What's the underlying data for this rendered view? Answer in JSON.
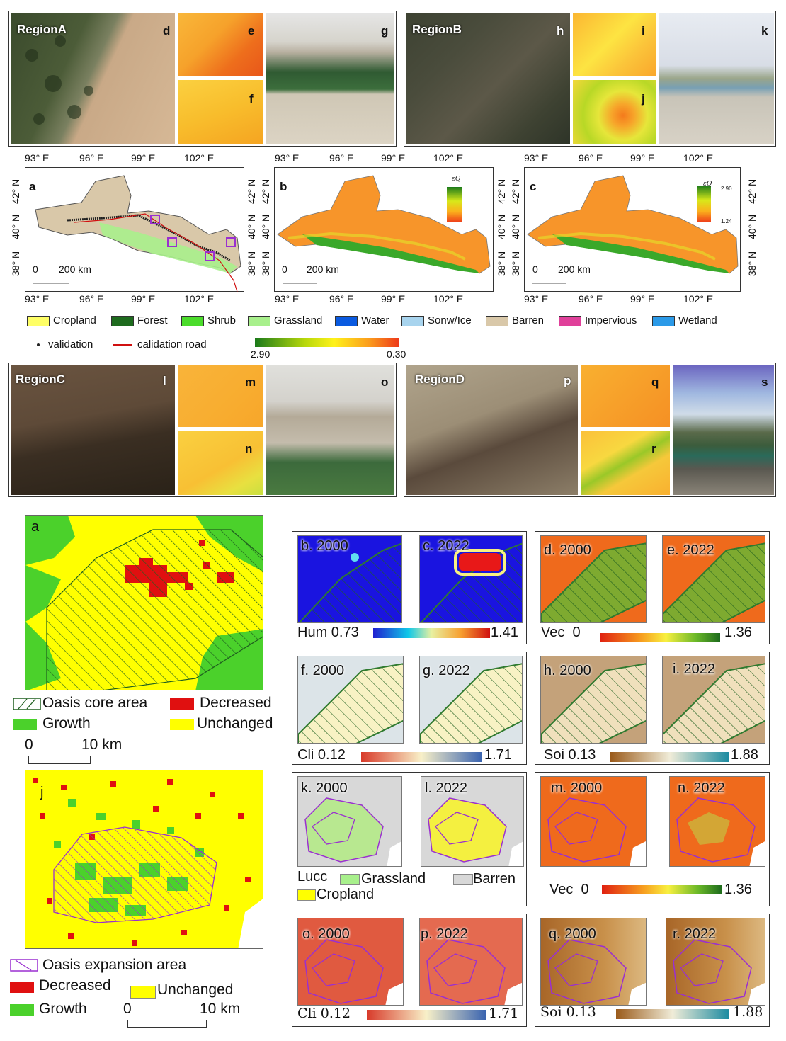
{
  "top": {
    "regions": {
      "a": {
        "title": "RegionA",
        "labels": [
          "d",
          "e",
          "f",
          "g"
        ]
      },
      "b": {
        "title": "RegionB",
        "labels": [
          "h",
          "i",
          "j",
          "k"
        ]
      },
      "c": {
        "title": "RegionC",
        "labels": [
          "l",
          "m",
          "n",
          "o"
        ]
      },
      "d": {
        "title": "RegionD",
        "labels": [
          "p",
          "q",
          "r",
          "s"
        ]
      }
    },
    "maps": {
      "labels": [
        "a",
        "b",
        "c"
      ],
      "lon_ticks": [
        "93° E",
        "96° E",
        "99° E",
        "102° E"
      ],
      "lat_ticks": [
        "38° N",
        "40° N",
        "42° N"
      ],
      "scale": {
        "zero": "0",
        "dist": "200 km"
      },
      "eq_symbol": "εQ",
      "legend_c_max": "2.90",
      "legend_c_min": "1.24"
    },
    "landcover_legend": [
      {
        "label": "Cropland",
        "color": "#ffff66"
      },
      {
        "label": "Forest",
        "color": "#1e6b1e"
      },
      {
        "label": "Shrub",
        "color": "#4bdc2b"
      },
      {
        "label": "Grassland",
        "color": "#a8f08c"
      },
      {
        "label": "Water",
        "color": "#0a5ae0"
      },
      {
        "label": "Sonw/Ice",
        "color": "#a8d4ee"
      },
      {
        "label": "Barren",
        "color": "#d9c8a9"
      },
      {
        "label": "Impervious",
        "color": "#e0409a"
      },
      {
        "label": "Wetland",
        "color": "#2b9ae8"
      }
    ],
    "validation_label": "validation",
    "road_label": "calidation road",
    "colorbar": {
      "left": "2.90",
      "right": "0.30"
    }
  },
  "bottom": {
    "left": {
      "panel_a": "a",
      "panel_j": "j",
      "legend1": {
        "core": "Oasis core area",
        "decreased": "Decreased",
        "growth": "Growth",
        "unchanged": "Unchanged"
      },
      "scale1": {
        "zero": "0",
        "dist": "10 km"
      },
      "legend2": {
        "expansion": "Oasis expansion area",
        "decreased": "Decreased",
        "unchanged": "Unchanged",
        "growth": "Growth"
      },
      "scale2": {
        "zero": "0",
        "dist": "10 km"
      }
    },
    "panels": [
      {
        "a_label": "b. 2000",
        "b_label": "c. 2022",
        "var": "Hum",
        "min": "0.73",
        "max": "1.41"
      },
      {
        "a_label": "d. 2000",
        "b_label": "e. 2022",
        "var": "Vec",
        "min": "0",
        "max": "1.36"
      },
      {
        "a_label": "f. 2000",
        "b_label": "g. 2022",
        "var": "Cli",
        "min": "0.12",
        "max": "1.71"
      },
      {
        "a_label": "h. 2000",
        "b_label": "i. 2022",
        "var": "Soi",
        "min": "0.13",
        "max": "1.88"
      },
      {
        "a_label": "k. 2000",
        "b_label": "l. 2022",
        "var": "Lucc",
        "legend": [
          "Grassland",
          "Barren",
          "Cropland"
        ]
      },
      {
        "a_label": "m. 2000",
        "b_label": "n. 2022",
        "var": "Vec",
        "min": "0",
        "max": "1.36"
      },
      {
        "a_label": "o. 2000",
        "b_label": "p. 2022",
        "var": "Cli",
        "min": "0.12",
        "max": "1.71"
      },
      {
        "a_label": "q. 2000",
        "b_label": "r. 2022",
        "var": "Soi",
        "min": "0.13",
        "max": "1.88"
      }
    ]
  }
}
